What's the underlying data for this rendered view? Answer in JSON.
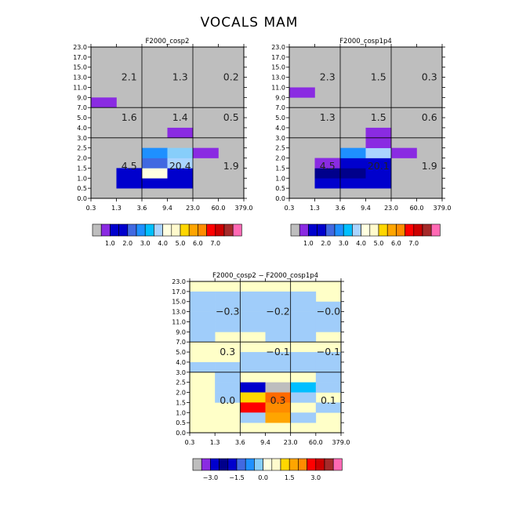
{
  "figure_title": "VOCALS MAM",
  "chart_data": [
    {
      "type": "heatmap",
      "title": "F2000_cosp2",
      "x_ticks": [
        "0.3",
        "1.3",
        "3.6",
        "9.4",
        "23.0",
        "60.0",
        "379.0"
      ],
      "y_ticks": [
        "0.0",
        "0.5",
        "1.0",
        "1.5",
        "2.0",
        "2.5",
        "3.0",
        "4.0",
        "5.0",
        "7.0",
        "9.0",
        "11.0",
        "13.0",
        "15.0",
        "17.0",
        "23.0"
      ],
      "background_color": "#bebebe",
      "grid_lines_x": [
        "3.6",
        "23.0"
      ],
      "grid_lines_y": [
        "3.0",
        "7.0"
      ],
      "cells": [
        {
          "x": 0,
          "y": 9,
          "color": "#8a2be2"
        },
        {
          "x": 1,
          "y": 1,
          "color": "#0000cd"
        },
        {
          "x": 1,
          "y": 2,
          "color": "#0000cd"
        },
        {
          "x": 2,
          "y": 1,
          "color": "#0000cd"
        },
        {
          "x": 2,
          "y": 2,
          "color": "#ffffe0"
        },
        {
          "x": 2,
          "y": 3,
          "color": "#4169e1"
        },
        {
          "x": 2,
          "y": 4,
          "color": "#1e90ff"
        },
        {
          "x": 3,
          "y": 1,
          "color": "#0000cd"
        },
        {
          "x": 3,
          "y": 2,
          "color": "#0000cd"
        },
        {
          "x": 3,
          "y": 3,
          "color": "#aad4ff"
        },
        {
          "x": 3,
          "y": 4,
          "color": "#87cefa"
        },
        {
          "x": 3,
          "y": 6,
          "color": "#8a2be2"
        },
        {
          "x": 4,
          "y": 4,
          "color": "#8a2be2"
        }
      ],
      "region_labels": [
        {
          "x": 1,
          "y": 12,
          "text": "2.1"
        },
        {
          "x": 3,
          "y": 12,
          "text": "1.3"
        },
        {
          "x": 5,
          "y": 12,
          "text": "0.2"
        },
        {
          "x": 1,
          "y": 8,
          "text": "1.6"
        },
        {
          "x": 3,
          "y": 8,
          "text": "1.4"
        },
        {
          "x": 5,
          "y": 8,
          "text": "0.5"
        },
        {
          "x": 1,
          "y": 3.2,
          "text": "4.5"
        },
        {
          "x": 3,
          "y": 3.2,
          "text": "20.4"
        },
        {
          "x": 5,
          "y": 3.2,
          "text": "1.9"
        }
      ],
      "colorbar": {
        "colors": [
          "#bebebe",
          "#8a2be2",
          "#0000cd",
          "#0000cd",
          "#4169e1",
          "#1e90ff",
          "#00bfff",
          "#aad4ff",
          "#ffffe0",
          "#fffacd",
          "#ffd700",
          "#ffa500",
          "#ff8c00",
          "#ff0000",
          "#cc0000",
          "#a52a2a",
          "#ff69b4"
        ],
        "labels": [
          "1.0",
          "2.0",
          "3.0",
          "4.0",
          "5.0",
          "6.0",
          "7.0"
        ],
        "label_boxes": [
          2,
          4,
          6,
          8,
          10,
          12,
          14
        ]
      }
    },
    {
      "type": "heatmap",
      "title": "F2000_cosp1p4",
      "x_ticks": [
        "0.3",
        "1.3",
        "3.6",
        "9.4",
        "23.0",
        "60.0",
        "379.0"
      ],
      "y_ticks": [
        "0.0",
        "0.5",
        "1.0",
        "1.5",
        "2.0",
        "2.5",
        "3.0",
        "4.0",
        "5.0",
        "7.0",
        "9.0",
        "11.0",
        "13.0",
        "15.0",
        "17.0",
        "23.0"
      ],
      "background_color": "#bebebe",
      "grid_lines_x": [
        "3.6",
        "23.0"
      ],
      "grid_lines_y": [
        "3.0",
        "7.0"
      ],
      "cells": [
        {
          "x": 0,
          "y": 10,
          "color": "#8a2be2"
        },
        {
          "x": 1,
          "y": 1,
          "color": "#0000cd"
        },
        {
          "x": 1,
          "y": 2,
          "color": "#00008b"
        },
        {
          "x": 1,
          "y": 3,
          "color": "#8a2be2"
        },
        {
          "x": 2,
          "y": 1,
          "color": "#0000cd"
        },
        {
          "x": 2,
          "y": 2,
          "color": "#00008b"
        },
        {
          "x": 2,
          "y": 3,
          "color": "#0000cd"
        },
        {
          "x": 2,
          "y": 4,
          "color": "#1e90ff"
        },
        {
          "x": 3,
          "y": 1,
          "color": "#0000cd"
        },
        {
          "x": 3,
          "y": 2,
          "color": "#0000cd"
        },
        {
          "x": 3,
          "y": 3,
          "color": "#0000cd"
        },
        {
          "x": 3,
          "y": 4,
          "color": "#aad4ff"
        },
        {
          "x": 3,
          "y": 5,
          "color": "#8a2be2"
        },
        {
          "x": 3,
          "y": 6,
          "color": "#8a2be2"
        },
        {
          "x": 4,
          "y": 4,
          "color": "#8a2be2"
        }
      ],
      "region_labels": [
        {
          "x": 1,
          "y": 12,
          "text": "2.3"
        },
        {
          "x": 3,
          "y": 12,
          "text": "1.5"
        },
        {
          "x": 5,
          "y": 12,
          "text": "0.3"
        },
        {
          "x": 1,
          "y": 8,
          "text": "1.3"
        },
        {
          "x": 3,
          "y": 8,
          "text": "1.5"
        },
        {
          "x": 5,
          "y": 8,
          "text": "0.6"
        },
        {
          "x": 1,
          "y": 3.2,
          "text": "4.5"
        },
        {
          "x": 3,
          "y": 3.2,
          "text": "20.1"
        },
        {
          "x": 5,
          "y": 3.2,
          "text": "1.9"
        }
      ],
      "colorbar": {
        "colors": [
          "#bebebe",
          "#8a2be2",
          "#0000cd",
          "#0000cd",
          "#4169e1",
          "#1e90ff",
          "#00bfff",
          "#aad4ff",
          "#ffffe0",
          "#fffacd",
          "#ffd700",
          "#ffa500",
          "#ff8c00",
          "#ff0000",
          "#cc0000",
          "#a52a2a",
          "#ff69b4"
        ],
        "labels": [
          "1.0",
          "2.0",
          "3.0",
          "4.0",
          "5.0",
          "6.0",
          "7.0"
        ],
        "label_boxes": [
          2,
          4,
          6,
          8,
          10,
          12,
          14
        ]
      }
    },
    {
      "type": "heatmap",
      "title": "F2000_cosp2 − F2000_cosp1p4",
      "x_ticks": [
        "0.3",
        "1.3",
        "3.6",
        "9.4",
        "23.0",
        "60.0",
        "379.0"
      ],
      "y_ticks": [
        "0.0",
        "0.5",
        "1.0",
        "1.5",
        "2.0",
        "2.5",
        "3.0",
        "4.0",
        "5.0",
        "7.0",
        "9.0",
        "11.0",
        "13.0",
        "15.0",
        "17.0",
        "23.0"
      ],
      "background_color": "#ffffc8",
      "grid_lines_x": [
        "3.6",
        "23.0"
      ],
      "grid_lines_y": [
        "3.0",
        "7.0"
      ],
      "cells": [
        {
          "x": 0,
          "y": 10,
          "color": "#a0cdfa"
        },
        {
          "x": 0,
          "y": 11,
          "color": "#a0cdfa"
        },
        {
          "x": 0,
          "y": 12,
          "color": "#a0cdfa"
        },
        {
          "x": 0,
          "y": 13,
          "color": "#a0cdfa"
        },
        {
          "x": 1,
          "y": 10,
          "color": "#a0cdfa"
        },
        {
          "x": 1,
          "y": 11,
          "color": "#a0cdfa"
        },
        {
          "x": 1,
          "y": 12,
          "color": "#a0cdfa"
        },
        {
          "x": 1,
          "y": 13,
          "color": "#a0cdfa"
        },
        {
          "x": 2,
          "y": 10,
          "color": "#a0cdfa"
        },
        {
          "x": 2,
          "y": 11,
          "color": "#a0cdfa"
        },
        {
          "x": 2,
          "y": 12,
          "color": "#a0cdfa"
        },
        {
          "x": 2,
          "y": 13,
          "color": "#a0cdfa"
        },
        {
          "x": 3,
          "y": 10,
          "color": "#a0cdfa"
        },
        {
          "x": 3,
          "y": 11,
          "color": "#a0cdfa"
        },
        {
          "x": 3,
          "y": 12,
          "color": "#a0cdfa"
        },
        {
          "x": 3,
          "y": 13,
          "color": "#a0cdfa"
        },
        {
          "x": 4,
          "y": 10,
          "color": "#a0cdfa"
        },
        {
          "x": 4,
          "y": 11,
          "color": "#a0cdfa"
        },
        {
          "x": 4,
          "y": 12,
          "color": "#a0cdfa"
        },
        {
          "x": 4,
          "y": 13,
          "color": "#a0cdfa"
        },
        {
          "x": 5,
          "y": 10,
          "color": "#a0cdfa"
        },
        {
          "x": 5,
          "y": 11,
          "color": "#a0cdfa"
        },
        {
          "x": 5,
          "y": 12,
          "color": "#a0cdfa"
        },
        {
          "x": 0,
          "y": 9,
          "color": "#a0cdfa"
        },
        {
          "x": 3,
          "y": 9,
          "color": "#a0cdfa"
        },
        {
          "x": 4,
          "y": 9,
          "color": "#a0cdfa"
        },
        {
          "x": 2,
          "y": 7,
          "color": "#a0cdfa"
        },
        {
          "x": 3,
          "y": 7,
          "color": "#a0cdfa"
        },
        {
          "x": 4,
          "y": 7,
          "color": "#a0cdfa"
        },
        {
          "x": 5,
          "y": 7,
          "color": "#a0cdfa"
        },
        {
          "x": 0,
          "y": 6,
          "color": "#a0cdfa"
        },
        {
          "x": 1,
          "y": 6,
          "color": "#a0cdfa"
        },
        {
          "x": 2,
          "y": 6,
          "color": "#a0cdfa"
        },
        {
          "x": 3,
          "y": 6,
          "color": "#a0cdfa"
        },
        {
          "x": 4,
          "y": 6,
          "color": "#a0cdfa"
        },
        {
          "x": 5,
          "y": 6,
          "color": "#a0cdfa"
        },
        {
          "x": 1,
          "y": 5,
          "color": "#a0cdfa"
        },
        {
          "x": 5,
          "y": 5,
          "color": "#a0cdfa"
        },
        {
          "x": 1,
          "y": 4,
          "color": "#a0cdfa"
        },
        {
          "x": 2,
          "y": 4,
          "color": "#0000cd"
        },
        {
          "x": 3,
          "y": 4,
          "color": "#bebebe"
        },
        {
          "x": 4,
          "y": 4,
          "color": "#00bfff"
        },
        {
          "x": 5,
          "y": 4,
          "color": "#a0cdfa"
        },
        {
          "x": 1,
          "y": 3,
          "color": "#a0cdfa"
        },
        {
          "x": 2,
          "y": 3,
          "color": "#ffd700"
        },
        {
          "x": 3,
          "y": 3,
          "color": "#ff6a00"
        },
        {
          "x": 4,
          "y": 3,
          "color": "#a0cdfa"
        },
        {
          "x": 2,
          "y": 2,
          "color": "#ff0000"
        },
        {
          "x": 3,
          "y": 2,
          "color": "#ff8c00"
        },
        {
          "x": 5,
          "y": 2,
          "color": "#a0cdfa"
        },
        {
          "x": 2,
          "y": 1,
          "color": "#a0cdfa"
        },
        {
          "x": 3,
          "y": 1,
          "color": "#ffa500"
        },
        {
          "x": 4,
          "y": 1,
          "color": "#a0cdfa"
        }
      ],
      "region_labels": [
        {
          "x": 1,
          "y": 12,
          "text": "−0.3"
        },
        {
          "x": 3,
          "y": 12,
          "text": "−0.2"
        },
        {
          "x": 5,
          "y": 12,
          "text": "−0.0"
        },
        {
          "x": 1,
          "y": 8,
          "text": "0.3"
        },
        {
          "x": 3,
          "y": 8,
          "text": "−0.1"
        },
        {
          "x": 5,
          "y": 8,
          "text": "−0.1"
        },
        {
          "x": 1,
          "y": 3.2,
          "text": "0.0"
        },
        {
          "x": 3,
          "y": 3.2,
          "text": "0.3"
        },
        {
          "x": 5,
          "y": 3.2,
          "text": "0.1"
        }
      ],
      "colorbar": {
        "colors": [
          "#bebebe",
          "#8a2be2",
          "#0000cd",
          "#00008b",
          "#0000cd",
          "#4169e1",
          "#1e90ff",
          "#87cefa",
          "#ffffe0",
          "#fffacd",
          "#ffd700",
          "#ffa500",
          "#ff8c00",
          "#ff0000",
          "#cc0000",
          "#a52a2a",
          "#ff69b4"
        ],
        "labels": [
          "−3.0",
          "−1.5",
          "0.0",
          "1.5",
          "3.0"
        ],
        "label_boxes": [
          2,
          5,
          8,
          11,
          14
        ]
      }
    }
  ]
}
